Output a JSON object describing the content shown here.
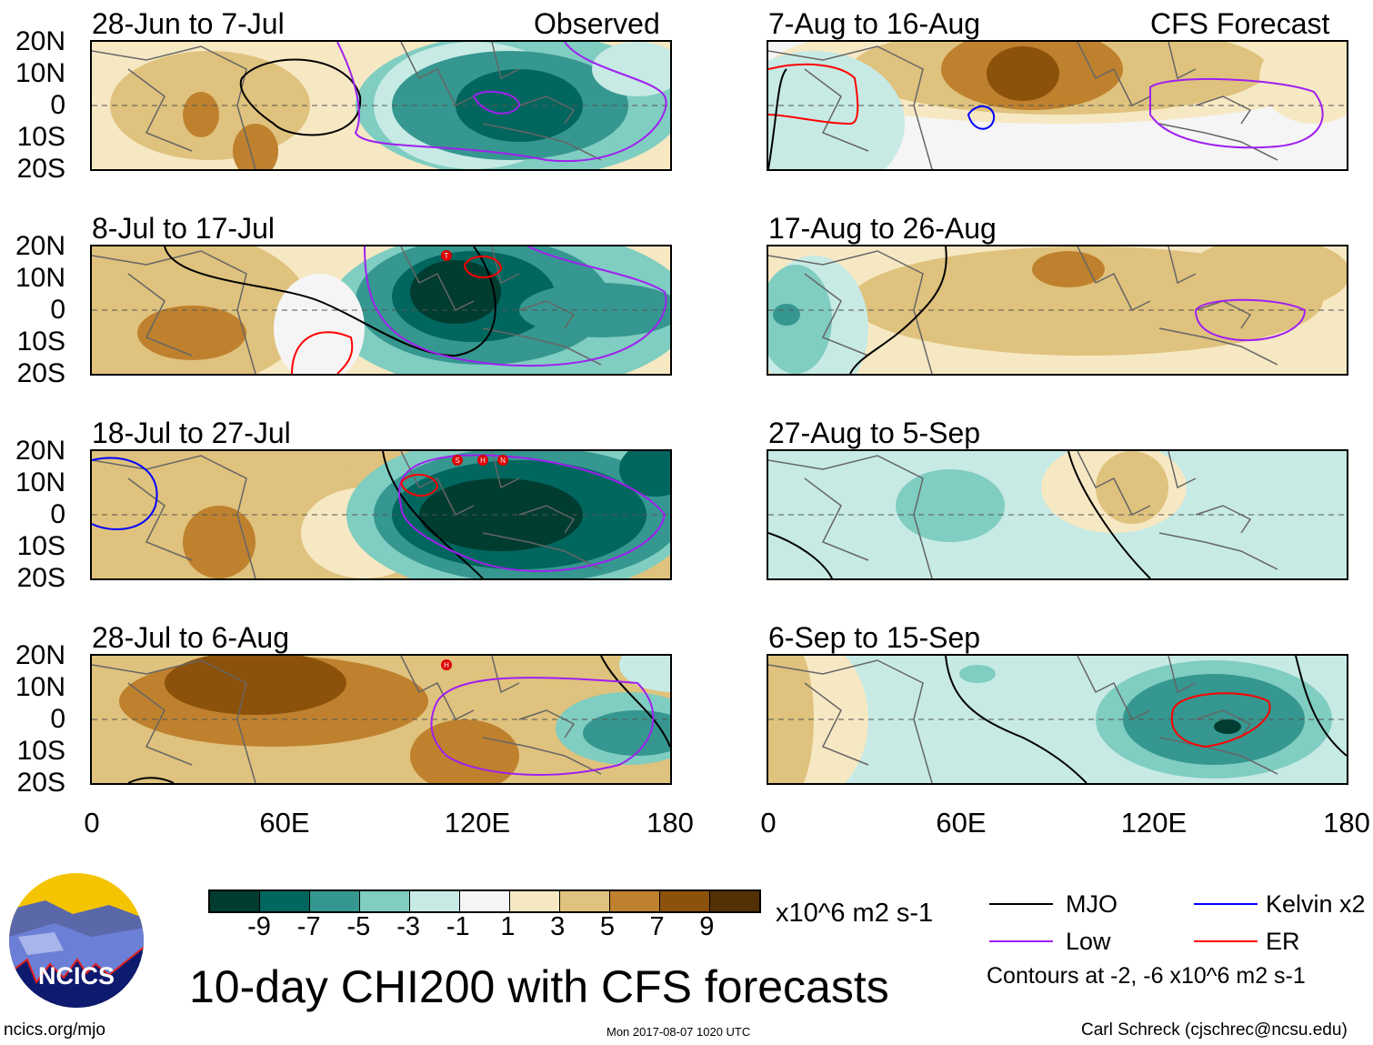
{
  "chart_data": {
    "type": "heatmap",
    "title": "10-day CHI200 with CFS forecasts",
    "variable": "CHI200",
    "units": "x10^6 m2 s-1",
    "colorbar": {
      "ticks": [
        "-9",
        "-7",
        "-5",
        "-3",
        "-1",
        "1",
        "3",
        "5",
        "7",
        "9"
      ],
      "colors": [
        "#003c30",
        "#01665e",
        "#35978f",
        "#80cdc1",
        "#c7eae5",
        "#f5f5f5",
        "#f6e8c3",
        "#dfc27d",
        "#bf812d",
        "#8c510a",
        "#543005"
      ]
    },
    "lat_ticks": [
      "20N",
      "10N",
      "0",
      "10S",
      "20S"
    ],
    "lon_ticks": [
      "0",
      "60E",
      "120E",
      "180"
    ],
    "panels": [
      {
        "title": "28-Jun to 7-Jul",
        "tag": "Observed"
      },
      {
        "title": "8-Jul to 17-Jul",
        "storms": [
          "T"
        ]
      },
      {
        "title": "18-Jul to 27-Jul",
        "storms": [
          "S",
          "H",
          "N"
        ]
      },
      {
        "title": "28-Jul to 6-Aug",
        "storms": [
          "H"
        ]
      },
      {
        "title": "7-Aug to 16-Aug",
        "tag": "CFS Forecast"
      },
      {
        "title": "17-Aug to 26-Aug"
      },
      {
        "title": "27-Aug to 5-Sep"
      },
      {
        "title": "6-Sep to 15-Sep"
      }
    ],
    "legend": [
      {
        "label": "MJO",
        "color": "#000000"
      },
      {
        "label": "Kelvin x2",
        "color": "#0000ff"
      },
      {
        "label": "Low",
        "color": "#a020f0"
      },
      {
        "label": "ER",
        "color": "#ff0000"
      }
    ],
    "contour_note": "Contours at -2, -6 x10^6 m2 s-1"
  },
  "footer": {
    "url": "ncics.org/mjo",
    "timestamp": "Mon 2017-08-07 1020 UTC",
    "author": "Carl Schreck (cjschrec@ncsu.edu)",
    "logo_text": "NCICS"
  }
}
